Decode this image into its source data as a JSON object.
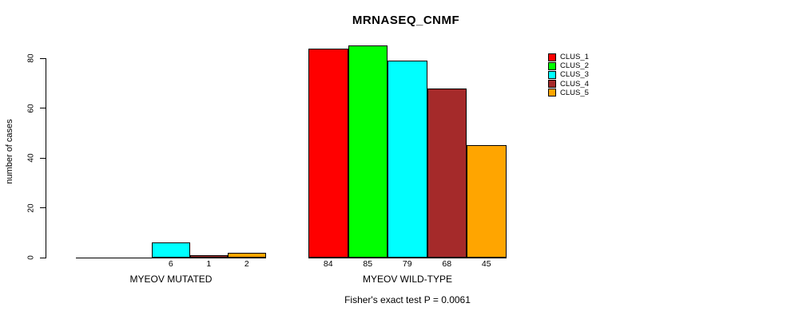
{
  "chart_data": {
    "type": "bar",
    "title": "MRNASEQ_CNMF",
    "ylabel": "number of cases",
    "ylim": [
      0,
      80
    ],
    "yticks": [
      "0",
      "20",
      "40",
      "60",
      "80"
    ],
    "ytick_values": [
      0,
      20,
      40,
      60,
      80
    ],
    "categories": [
      "MYEOV MUTATED",
      "MYEOV WILD-TYPE"
    ],
    "series": [
      {
        "name": "CLUS_1",
        "color": "#ff0000",
        "values": [
          0,
          84
        ]
      },
      {
        "name": "CLUS_2",
        "color": "#00ff00",
        "values": [
          0,
          85
        ]
      },
      {
        "name": "CLUS_3",
        "color": "#00ffff",
        "values": [
          6,
          79
        ]
      },
      {
        "name": "CLUS_4",
        "color": "#a52a2a",
        "values": [
          1,
          68
        ]
      },
      {
        "name": "CLUS_5",
        "color": "#ffa500",
        "values": [
          2,
          45
        ]
      }
    ],
    "bar_value_labels": {
      "MYEOV MUTATED": [
        "",
        "",
        "6",
        "1",
        "2"
      ],
      "MYEOV WILD-TYPE": [
        "84",
        "85",
        "79",
        "68",
        "45"
      ]
    },
    "legend_position": "right",
    "grid": false,
    "annotation": "Fisher's exact test P = 0.0061",
    "colors": {
      "axis": "#000000",
      "background": "#ffffff",
      "text": "#000000"
    }
  }
}
